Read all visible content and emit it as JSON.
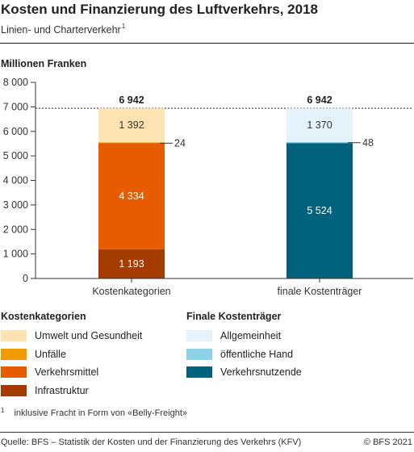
{
  "title": "Kosten und Finanzierung des Luftverkehrs, 2018",
  "subtitle": "Linien- und Charterverkehr",
  "subtitle_note": "1",
  "unit_label": "Millionen Franken",
  "chart_data": {
    "type": "bar",
    "stacked": true,
    "categories": [
      "Kostenkategorien",
      "finale Kostenträger"
    ],
    "ylim": [
      0,
      8000
    ],
    "yticks": [
      "0",
      "1 000",
      "2 000",
      "3 000",
      "4 000",
      "5 000",
      "6 000",
      "7 000",
      "8 000"
    ],
    "grid": false,
    "totals": [
      "6 942",
      "6 942"
    ],
    "reference_line": 6942,
    "stacks": [
      {
        "category": "Kostenkategorien",
        "segments": [
          {
            "name": "Infrastruktur",
            "value": 1193,
            "label": "1 193",
            "color": "#a63b00"
          },
          {
            "name": "Verkehrsmittel",
            "value": 4334,
            "label": "4 334",
            "color": "#e85c00"
          },
          {
            "name": "Unfälle",
            "value": 24,
            "label": "24",
            "color": "#f29b00"
          },
          {
            "name": "Umwelt und Gesundheit",
            "value": 1392,
            "label": "1 392",
            "color": "#fde2b2"
          }
        ]
      },
      {
        "category": "finale Kostenträger",
        "segments": [
          {
            "name": "Verkehrsnutzende",
            "value": 5524,
            "label": "5 524",
            "color": "#00627d"
          },
          {
            "name": "öffentliche Hand",
            "value": 48,
            "label": "48",
            "color": "#8cd0ea"
          },
          {
            "name": "Allgemeinheit",
            "value": 1370,
            "label": "1 370",
            "color": "#e3f2fb"
          }
        ]
      }
    ]
  },
  "legend": {
    "left_title": "Kostenkategorien",
    "left_items": [
      {
        "label": "Umwelt und Gesundheit",
        "color": "#fde2b2"
      },
      {
        "label": "Unfälle",
        "color": "#f29b00"
      },
      {
        "label": "Verkehrsmittel",
        "color": "#e85c00"
      },
      {
        "label": "Infrastruktur",
        "color": "#a63b00"
      }
    ],
    "right_title": "Finale Kostenträger",
    "right_items": [
      {
        "label": "Allgemeinheit",
        "color": "#e3f2fb"
      },
      {
        "label": "öffentliche Hand",
        "color": "#8cd0ea"
      },
      {
        "label": "Verkehrsnutzende",
        "color": "#00627d"
      }
    ]
  },
  "footnote_number": "1",
  "footnote": "inklusive Fracht in Form von «Belly-Freight»",
  "source": "Quelle: BFS – Statistik der Kosten und der Finanzierung des Verkehrs (KFV)",
  "copyright": "© BFS 2021"
}
